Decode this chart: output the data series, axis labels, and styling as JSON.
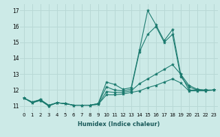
{
  "xlabel": "Humidex (Indice chaleur)",
  "bg_color": "#cceae7",
  "grid_color": "#b8d8d5",
  "line_color": "#1a7a6e",
  "xlim": [
    -0.5,
    23.5
  ],
  "ylim": [
    10.6,
    17.4
  ],
  "yticks": [
    11,
    12,
    13,
    14,
    15,
    16,
    17
  ],
  "xticks": [
    0,
    1,
    2,
    3,
    4,
    5,
    6,
    7,
    8,
    9,
    10,
    11,
    12,
    13,
    14,
    15,
    16,
    17,
    18,
    19,
    20,
    21,
    22,
    23
  ],
  "series": [
    [
      11.5,
      11.2,
      11.35,
      11.0,
      11.2,
      11.15,
      11.05,
      11.05,
      11.05,
      11.15,
      12.5,
      12.35,
      12.05,
      12.15,
      14.5,
      17.0,
      16.1,
      15.1,
      15.8,
      13.0,
      12.3,
      12.05,
      12.0,
      12.0
    ],
    [
      11.5,
      11.2,
      11.35,
      11.0,
      11.2,
      11.15,
      11.05,
      11.05,
      11.05,
      11.15,
      12.2,
      12.0,
      11.95,
      12.05,
      14.4,
      15.5,
      16.0,
      15.0,
      15.5,
      12.85,
      12.2,
      12.0,
      12.0,
      12.0
    ],
    [
      11.5,
      11.25,
      11.4,
      11.05,
      11.2,
      11.15,
      11.05,
      11.05,
      11.05,
      11.1,
      11.9,
      11.85,
      11.85,
      11.95,
      12.4,
      12.7,
      13.0,
      13.3,
      13.6,
      13.0,
      12.0,
      12.0,
      12.0,
      12.0
    ],
    [
      11.5,
      11.25,
      11.4,
      11.05,
      11.2,
      11.15,
      11.05,
      11.05,
      11.05,
      11.1,
      11.7,
      11.7,
      11.75,
      11.85,
      11.95,
      12.15,
      12.3,
      12.5,
      12.7,
      12.45,
      11.95,
      11.95,
      11.95,
      12.0
    ]
  ]
}
